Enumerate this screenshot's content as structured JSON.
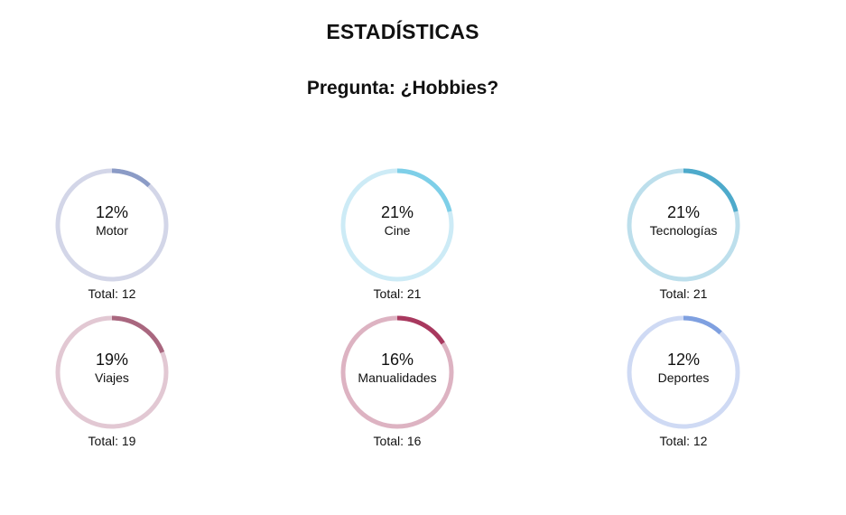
{
  "header": {
    "title": "ESTADÍSTICAS",
    "question": "Pregunta: ¿Hobbies?"
  },
  "chart_data": {
    "type": "pie",
    "variant": "donut-progress-rings",
    "title": "",
    "items": [
      {
        "label": "Motor",
        "percent": "12%",
        "value": 12,
        "total_text": "Total: 12",
        "track_color": "#d3d6e8",
        "arc_color": "#8b9bc6"
      },
      {
        "label": "Cine",
        "percent": "21%",
        "value": 21,
        "total_text": "Total: 21",
        "track_color": "#cdebf6",
        "arc_color": "#7ecfe8"
      },
      {
        "label": "Tecnologías",
        "percent": "21%",
        "value": 21,
        "total_text": "Total: 21",
        "track_color": "#bddfec",
        "arc_color": "#4eaacb"
      },
      {
        "label": "Viajes",
        "percent": "19%",
        "value": 19,
        "total_text": "Total: 19",
        "track_color": "#e2c8d3",
        "arc_color": "#a9677f"
      },
      {
        "label": "Manualidades",
        "percent": "16%",
        "value": 16,
        "total_text": "Total: 16",
        "track_color": "#ddb3c2",
        "arc_color": "#a8385e"
      },
      {
        "label": "Deportes",
        "percent": "12%",
        "value": 12,
        "total_text": "Total: 12",
        "track_color": "#cfdaf4",
        "arc_color": "#7fa0e0"
      }
    ]
  }
}
